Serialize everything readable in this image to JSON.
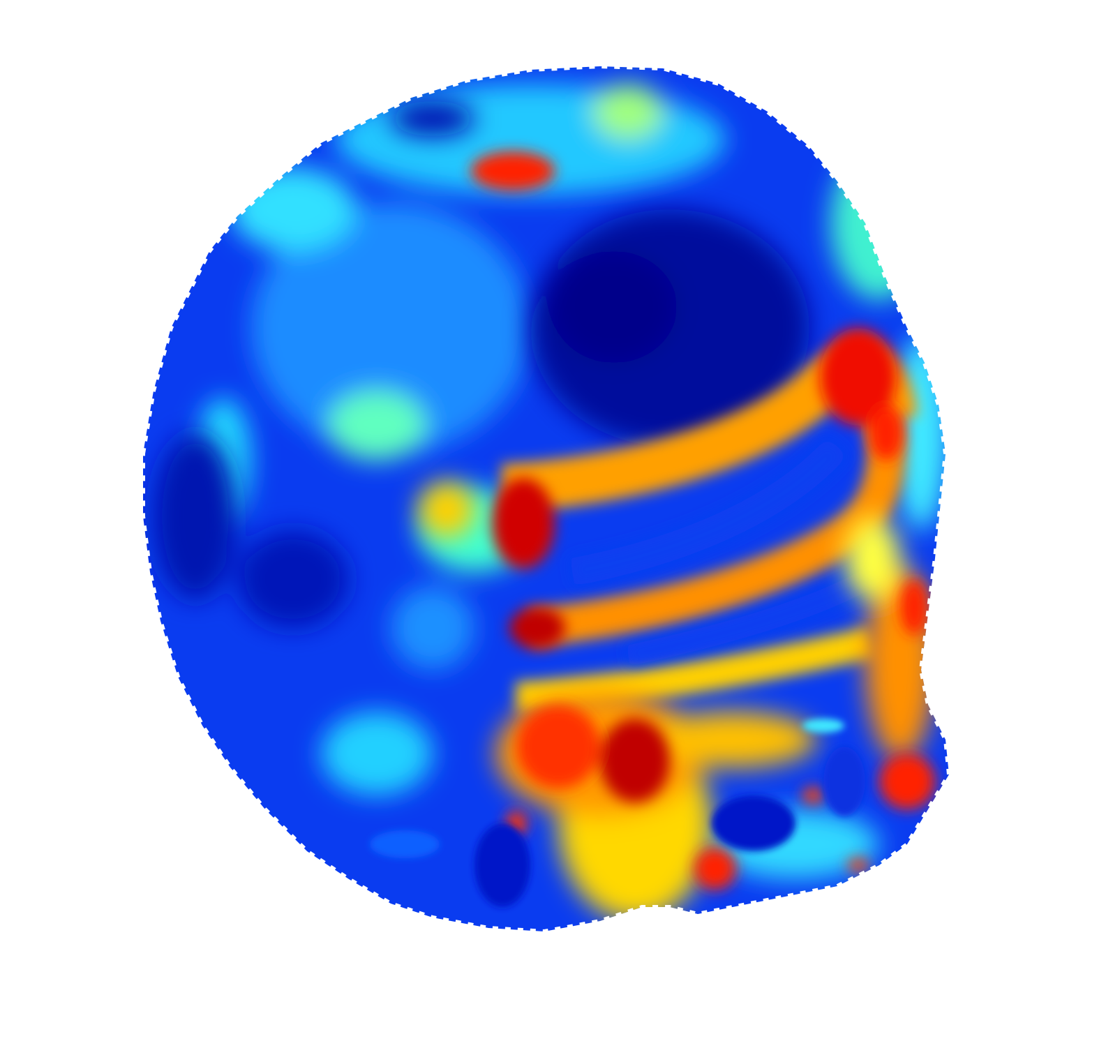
{
  "figure": {
    "kind": "surface heatmap rendering",
    "colormap": "jet",
    "colormap_stops": [
      "#00007f",
      "#0000ff",
      "#0080ff",
      "#00ffff",
      "#80ff80",
      "#ffff00",
      "#ff8000",
      "#ff0000",
      "#7f0000"
    ],
    "background": "#ffffff",
    "dominant_color": "#0a3cf0"
  }
}
